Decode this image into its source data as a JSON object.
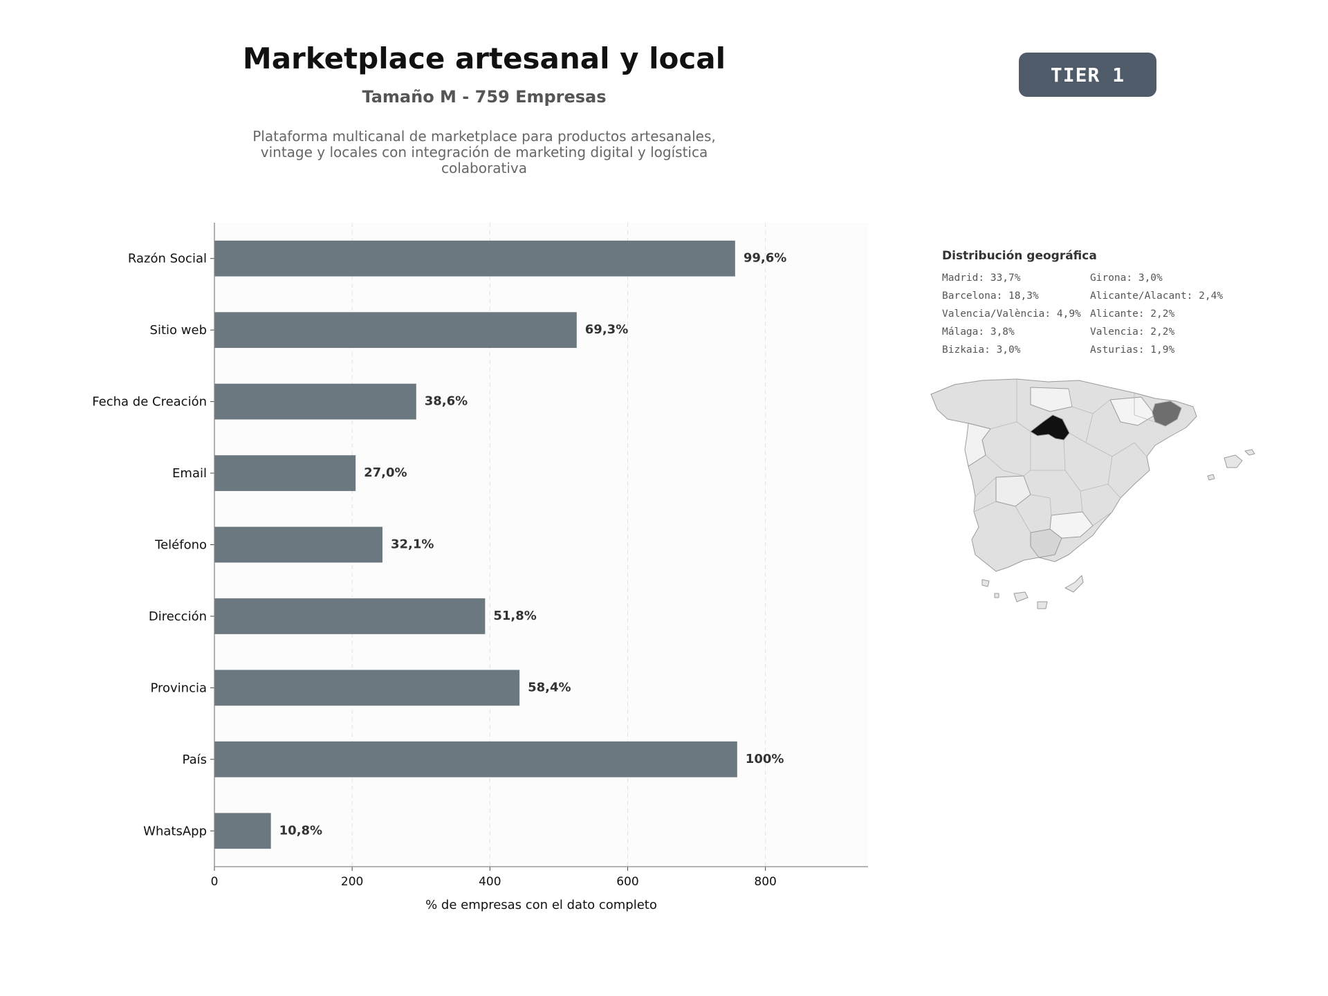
{
  "header": {
    "title": "Marketplace artesanal y local",
    "subtitle": "Tamaño M - 759 Empresas",
    "description": "Plataforma multicanal de marketplace para productos artesanales, vintage y locales con integración de marketing digital y logística colaborativa",
    "badge": "TIER 1"
  },
  "chart_data": {
    "type": "bar",
    "orientation": "horizontal",
    "categories": [
      "Razón Social",
      "Sitio web",
      "Fecha de Creación",
      "Email",
      "Teléfono",
      "Dirección",
      "Provincia",
      "País",
      "WhatsApp"
    ],
    "values": [
      756,
      526,
      293,
      205,
      244,
      393,
      443,
      759,
      82
    ],
    "data_labels": [
      "99,6%",
      "69,3%",
      "38,6%",
      "27,0%",
      "32,1%",
      "51,8%",
      "58,4%",
      "100%",
      "10,8%"
    ],
    "xlabel": "% de empresas con el dato completo",
    "ylabel": "",
    "xlim": [
      0,
      949
    ],
    "xticks": [
      0,
      200,
      400,
      600,
      800
    ],
    "grid": "vertical dashed",
    "bar_color": "#6c7880"
  },
  "geo": {
    "title": "Distribución geográfica",
    "items": [
      "Madrid: 33,7%",
      "Girona: 3,0%",
      "Barcelona: 18,3%",
      "Alicante/Alacant: 2,4%",
      "Valencia/València: 4,9%",
      "Alicante: 2,2%",
      "Málaga: 3,8%",
      "Valencia: 2,2%",
      "Bizkaia: 3,0%",
      "Asturias: 1,9%"
    ],
    "map_highlight": {
      "Madrid": "#111111",
      "Barcelona": "#6e6e6e",
      "default": "#e0e0e0"
    }
  }
}
